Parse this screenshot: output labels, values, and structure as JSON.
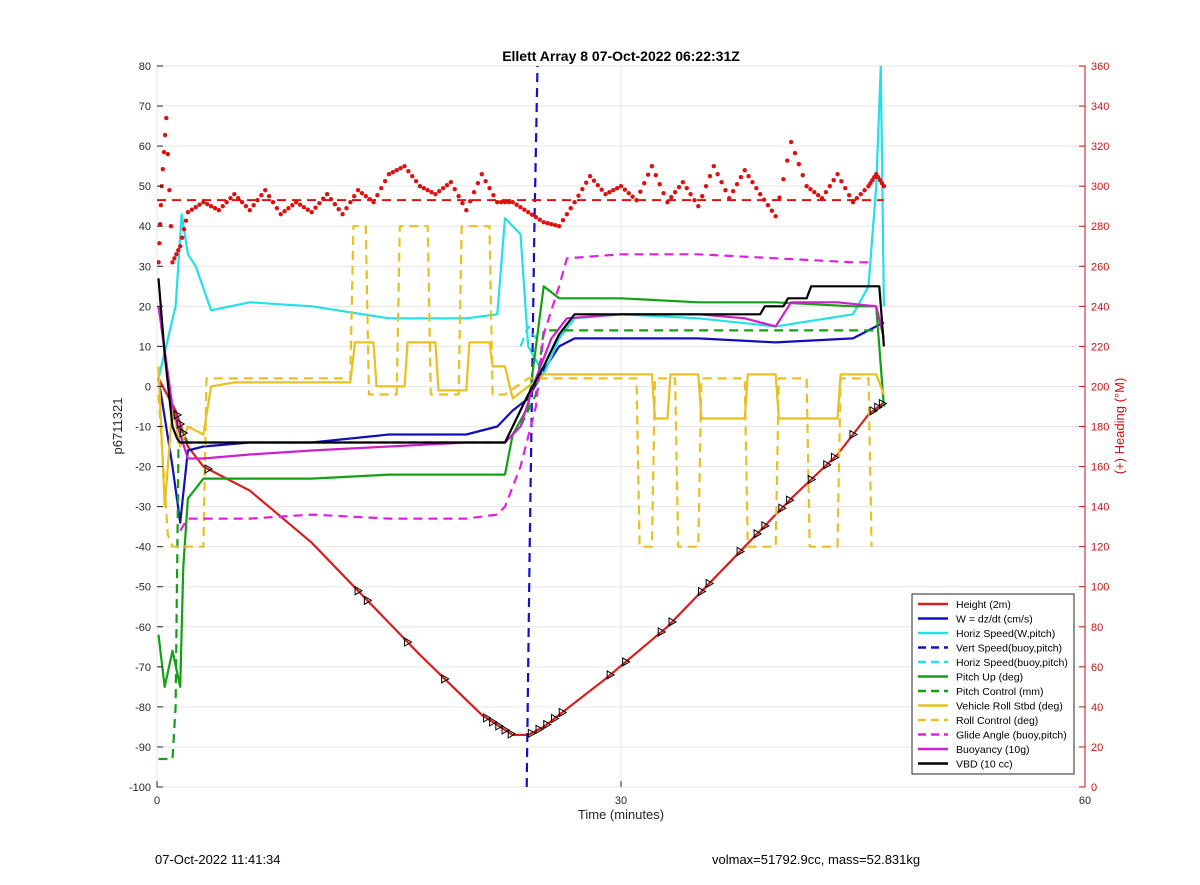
{
  "footer": {
    "timestamp": "07-Oct-2022 11:41:34",
    "info": "volmax=51792.9cc, mass=52.831kg"
  },
  "chart_data": {
    "type": "line",
    "title": "Ellett Array 8 07-Oct-2022 06:22:31Z",
    "xlabel": "Time (minutes)",
    "ylabel": "p6711321",
    "y2label": "(+) Heading (°M)",
    "xlim": [
      0,
      60
    ],
    "ylim": [
      -100,
      80
    ],
    "y2lim": [
      0,
      360
    ],
    "xticks": [
      0,
      30,
      60
    ],
    "yticks": [
      -100,
      -90,
      -80,
      -70,
      -60,
      -50,
      -40,
      -30,
      -20,
      -10,
      0,
      10,
      20,
      30,
      40,
      50,
      60,
      70,
      80
    ],
    "y2ticks": [
      0,
      20,
      40,
      60,
      80,
      100,
      120,
      140,
      160,
      180,
      200,
      220,
      240,
      260,
      280,
      300,
      320,
      340,
      360
    ],
    "grid": true,
    "legend_position": "bottom-right",
    "colors": {
      "heading": "#dd1111",
      "axis_right": "#cc1111"
    },
    "series": [
      {
        "name": "Height (2m)",
        "color": "#d62020",
        "style": "solid",
        "x": [
          0.1,
          1.2,
          2.0,
          3.0,
          6.0,
          10.0,
          14.0,
          17.0,
          21.0,
          23.0,
          24.0,
          25.0,
          26.0,
          29.0,
          33.0,
          37.0,
          41.0,
          44.0,
          46.0,
          47.0
        ],
        "y": [
          2,
          -6,
          -15,
          -20,
          -26,
          -39,
          -55,
          -67,
          -82,
          -87,
          -87,
          -85,
          -82,
          -73,
          -60,
          -44,
          -28,
          -17,
          -7,
          -4
        ]
      },
      {
        "name": "W = dz/dt (cm/s)",
        "color": "#1010b8",
        "style": "solid",
        "x": [
          0.1,
          1.0,
          1.5,
          2.0,
          3.0,
          6.0,
          10.0,
          15.0,
          20.0,
          22.0,
          22.5,
          23.0,
          24.0,
          25.0,
          26.0,
          27.0,
          30.0,
          35.0,
          40.0,
          45.0,
          46.5,
          47.0
        ],
        "y": [
          2,
          -20,
          -34,
          -16,
          -15,
          -14,
          -14,
          -12,
          -12,
          -10,
          -8,
          -6,
          -3,
          4,
          10,
          12,
          12,
          12,
          11,
          12,
          15,
          16
        ]
      },
      {
        "name": "Horiz Speed(W,pitch)",
        "color": "#22e0e8",
        "style": "solid",
        "x": [
          0.1,
          1.2,
          1.6,
          2.0,
          2.5,
          3.5,
          6.0,
          10.0,
          15.0,
          20.0,
          22.0,
          22.5,
          23.5,
          24.0,
          25.0,
          26.0,
          27.0,
          30.0,
          35.0,
          40.0,
          45.0,
          46.0,
          46.5,
          46.8,
          47.0
        ],
        "y": [
          2,
          20,
          43,
          33,
          30,
          19,
          21,
          20,
          17,
          17,
          18,
          42,
          38,
          10,
          3,
          12,
          17,
          18,
          17,
          15,
          18,
          25,
          50,
          80,
          20
        ]
      },
      {
        "name": "Vert Speed(buoy,pitch)",
        "color": "#1010c8",
        "style": "dashed",
        "x": [
          23.9,
          24.1,
          24.4,
          24.6
        ],
        "y": [
          -100,
          -40,
          40,
          80
        ]
      },
      {
        "name": "Horiz Speed(buoy,pitch)",
        "color": "#22e0e8",
        "style": "dashed",
        "x": [
          23.5,
          24.0,
          24.5
        ],
        "y": [
          10,
          15,
          12
        ]
      },
      {
        "name": "Pitch Up (deg)",
        "color": "#14a014",
        "style": "solid",
        "x": [
          0.1,
          0.5,
          1.0,
          1.5,
          1.7,
          2.0,
          3.0,
          6.0,
          10.0,
          15.0,
          20.0,
          22.5,
          23.0,
          24.0,
          25.0,
          26.0,
          30.0,
          35.0,
          40.0,
          45.0,
          46.5,
          47.0
        ],
        "y": [
          -62,
          -75,
          -66,
          -75,
          -45,
          -28,
          -23,
          -23,
          -23,
          -22,
          -22,
          -22,
          -12,
          -5,
          25,
          22,
          22,
          21,
          21,
          20,
          20,
          -5
        ]
      },
      {
        "name": "Pitch Control (mm)",
        "color": "#14a014",
        "style": "dashed",
        "x": [
          0.1,
          1.0,
          1.2,
          1.4,
          2.0,
          10.0,
          22.5,
          23.5,
          24.5,
          25.0,
          30.0,
          46.0,
          46.5
        ],
        "y": [
          -93,
          -93,
          -80,
          -10,
          -14,
          -14,
          -14,
          -10,
          -2,
          14,
          14,
          14,
          14
        ]
      },
      {
        "name": "Vehicle Roll Stbd (deg)",
        "color": "#e8c020",
        "style": "solid",
        "x": [
          0.1,
          0.5,
          1.0,
          1.5,
          2.0,
          3.0,
          3.5,
          5.0,
          10.0,
          12.5,
          12.8,
          14.0,
          14.2,
          16.0,
          16.2,
          18.0,
          18.2,
          20.0,
          20.2,
          21.5,
          21.7,
          22.5,
          23.0,
          24.0,
          25.0,
          30.0,
          32.0,
          32.2,
          33.0,
          33.2,
          35.0,
          35.2,
          38.0,
          38.2,
          40.0,
          40.2,
          44.0,
          44.2,
          46.0,
          46.5,
          47.0
        ],
        "y": [
          5,
          -30,
          -5,
          -15,
          -10,
          -12,
          0,
          1,
          1,
          1,
          11,
          11,
          0,
          0,
          11,
          11,
          -1,
          -1,
          11,
          11,
          5,
          5,
          -3,
          0,
          3,
          3,
          3,
          -8,
          -8,
          3,
          3,
          -8,
          -8,
          3,
          3,
          -8,
          -8,
          3,
          3,
          3,
          -2
        ]
      },
      {
        "name": "Roll Control (deg)",
        "color": "#e8c020",
        "style": "dashed",
        "x": [
          0.1,
          0.7,
          1.0,
          1.5,
          2.0,
          3.0,
          3.2,
          12.5,
          12.7,
          13.5,
          13.7,
          15.5,
          15.7,
          17.5,
          17.7,
          19.5,
          19.7,
          21.5,
          21.7,
          22.5,
          24.0,
          25.0,
          30.0,
          31.0,
          31.2,
          32.0,
          32.2,
          33.5,
          33.7,
          35.0,
          35.2,
          38.0,
          38.2,
          40.0,
          40.2,
          42.0,
          42.2,
          44.0,
          44.2,
          46.0,
          46.2
        ],
        "y": [
          -2,
          -37,
          -40,
          -40,
          -40,
          -40,
          2,
          2,
          40,
          40,
          -2,
          -2,
          40,
          40,
          -2,
          -2,
          40,
          40,
          -2,
          -2,
          2,
          2,
          2,
          2,
          -40,
          -40,
          2,
          2,
          -40,
          -40,
          2,
          2,
          -40,
          -40,
          2,
          2,
          -40,
          -40,
          2,
          2,
          -40
        ]
      },
      {
        "name": "Glide Angle (buoy,pitch)",
        "color": "#e020e0",
        "style": "dashed",
        "x": [
          1.5,
          2.0,
          3.0,
          6.0,
          10.0,
          15.0,
          20.0,
          22.0,
          22.5,
          23.5,
          24.5,
          25.0,
          26.0,
          26.5,
          30.0,
          35.0,
          40.0,
          45.0,
          46.0
        ],
        "y": [
          -36,
          -33,
          -33,
          -33,
          -32,
          -33,
          -33,
          -32,
          -30,
          -20,
          -5,
          13,
          25,
          32,
          33,
          33,
          32,
          31,
          31
        ]
      },
      {
        "name": "Buoyancy (10g)",
        "color": "#cc20cc",
        "style": "solid",
        "x": [
          0.1,
          1.0,
          1.5,
          2.0,
          3.0,
          6.0,
          10.0,
          15.0,
          20.0,
          22.5,
          23.5,
          24.5,
          25.5,
          26.5,
          30.0,
          35.0,
          38.0,
          40.0,
          41.0,
          44.0,
          46.5,
          47.0
        ],
        "y": [
          20,
          -5,
          -12,
          -18,
          -18,
          -17,
          -16,
          -15,
          -14,
          -14,
          -10,
          2,
          12,
          17,
          18,
          18,
          17,
          15,
          21,
          21,
          20,
          12
        ]
      },
      {
        "name": "VBD (10 cc)",
        "color": "#000000",
        "style": "solid",
        "x": [
          0.1,
          0.5,
          1.0,
          1.3,
          1.5,
          2.0,
          6.0,
          10.0,
          15.0,
          20.0,
          22.5,
          23.0,
          24.0,
          25.0,
          26.0,
          27.0,
          30.0,
          35.0,
          39.0,
          39.3,
          40.5,
          40.8,
          42.0,
          42.3,
          46.7,
          47.0
        ],
        "y": [
          27,
          8,
          -10,
          -13,
          -14,
          -14,
          -14,
          -14,
          -14,
          -14,
          -14,
          -10,
          -2,
          5,
          13,
          18,
          18,
          18,
          18,
          20,
          20,
          22,
          22,
          25,
          25,
          10
        ]
      }
    ],
    "heading": {
      "name": "Heading (°M)",
      "axis": "right",
      "style": "dots",
      "x": [
        0.1,
        0.3,
        0.6,
        1.0,
        1.5,
        2.0,
        3.0,
        4.0,
        5.0,
        6.0,
        7.0,
        8.0,
        9.0,
        10.0,
        11.0,
        12.0,
        13.0,
        14.0,
        15.0,
        16.0,
        17.0,
        18.0,
        19.0,
        20.0,
        21.0,
        22.0,
        23.0,
        24.0,
        25.0,
        26.0,
        27.0,
        28.0,
        29.0,
        30.0,
        31.0,
        32.0,
        33.0,
        34.0,
        35.0,
        36.0,
        37.0,
        38.0,
        39.0,
        40.0,
        41.0,
        42.0,
        43.0,
        44.0,
        45.0,
        46.0,
        46.5,
        47.0
      ],
      "y": [
        262,
        300,
        334,
        262,
        270,
        287,
        292,
        288,
        296,
        288,
        298,
        286,
        292,
        287,
        296,
        286,
        298,
        292,
        306,
        310,
        300,
        296,
        302,
        288,
        306,
        292,
        292,
        287,
        282,
        280,
        292,
        305,
        296,
        300,
        293,
        310,
        292,
        302,
        290,
        310,
        294,
        308,
        296,
        285,
        322,
        300,
        294,
        306,
        292,
        300,
        306,
        300
      ]
    },
    "heading_ref": {
      "axis": "right",
      "value": 293,
      "style": "dashed"
    }
  }
}
